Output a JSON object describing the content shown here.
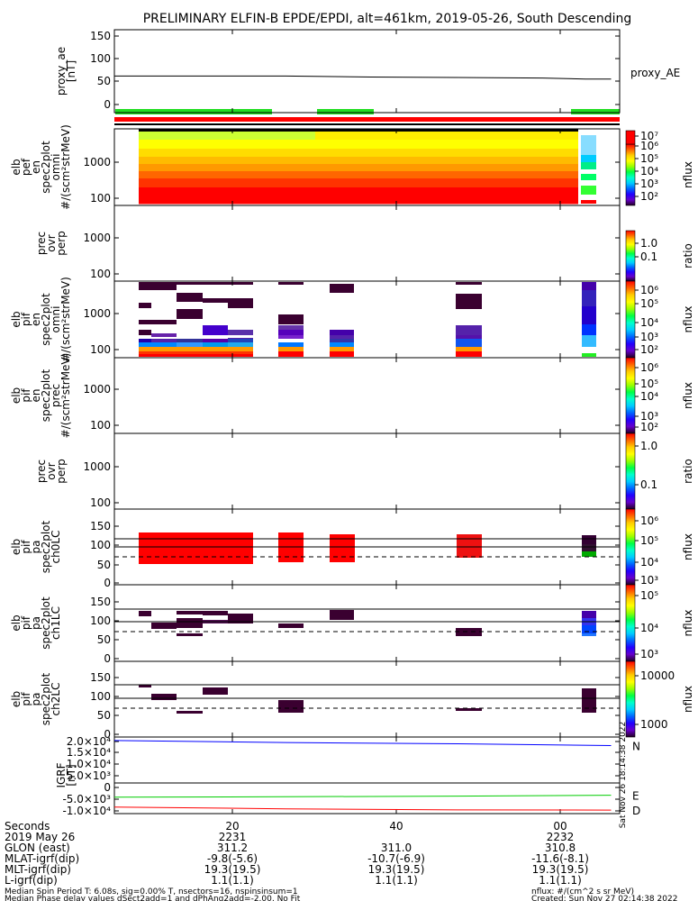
{
  "chart_data": {
    "type": "heatmap",
    "title": "PRELIMINARY ELFIN-B EPDE/EPDI, alt=461km, 2019-05-26, South Descending",
    "x_tick_labels": [
      "20",
      "40",
      "00"
    ],
    "panels": [
      {
        "id": "proxy_ae",
        "ylabel": [
          "proxy_ae",
          "[nT]"
        ],
        "right_label": "proxy_AE",
        "yticks": [
          "0",
          "50",
          "100",
          "150"
        ],
        "ylim": [
          -10,
          160
        ],
        "line": [
          [
            0,
            65
          ],
          [
            10,
            65
          ],
          [
            20,
            65
          ],
          [
            30,
            63
          ],
          [
            40,
            62
          ],
          [
            50,
            61
          ],
          [
            55,
            59
          ],
          [
            58,
            59
          ]
        ]
      },
      {
        "id": "elb_pef_en",
        "ylabel": [
          "elb",
          "pef",
          "en",
          "spec2plot",
          "omni",
          "#/(scm²strMeV)"
        ],
        "yticks": [
          "100",
          "1000"
        ],
        "ylim_log": [
          55,
          8000
        ],
        "colorbar": {
          "label": "nflux",
          "ticks": [
            "10⁷",
            "10⁶",
            "10⁵",
            "10⁴",
            "10³",
            "10²"
          ]
        }
      },
      {
        "id": "prec_ovr_perp_e",
        "ylabel": [
          "prec",
          "ovr",
          "perp"
        ],
        "yticks": [
          "100",
          "1000"
        ],
        "ylim_log": [
          55,
          8000
        ],
        "colorbar": {
          "label": "ratio",
          "ticks": [
            "1.0",
            "0.1"
          ]
        }
      },
      {
        "id": "elb_pif_en",
        "ylabel": [
          "elb",
          "pif",
          "en",
          "spec2plot",
          "omni",
          "#/(scm²strMeV)"
        ],
        "yticks": [
          "100",
          "1000"
        ],
        "ylim_log": [
          55,
          8000
        ],
        "colorbar": {
          "label": "nflux",
          "ticks": [
            "10⁶",
            "10⁵",
            "10⁴",
            "10³",
            "10²"
          ]
        }
      },
      {
        "id": "elb_pif_en_prec",
        "ylabel": [
          "elb",
          "pif",
          "en",
          "spec2plot",
          "prec",
          "#/(scm²strMeV)"
        ],
        "yticks": [
          "100",
          "1000"
        ],
        "ylim_log": [
          55,
          8000
        ],
        "colorbar": {
          "label": "nflux",
          "ticks": [
            "10⁶",
            "10⁵",
            "10⁴",
            "10³",
            "10²"
          ]
        }
      },
      {
        "id": "prec_ovr_perp_i",
        "ylabel": [
          "prec",
          "ovr",
          "perp"
        ],
        "yticks": [
          "100",
          "1000"
        ],
        "ylim_log": [
          55,
          8000
        ],
        "colorbar": {
          "label": "ratio",
          "ticks": [
            "1.0",
            "0.1"
          ]
        }
      },
      {
        "id": "elb_pif_pa_ch0",
        "ylabel": [
          "elb",
          "pif",
          "pa",
          "spec2plot",
          "ch0LC"
        ],
        "yticks": [
          "0",
          "50",
          "100",
          "150"
        ],
        "ylim": [
          -10,
          190
        ],
        "colorbar": {
          "label": "nflux",
          "ticks": [
            "10⁶",
            "10⁵",
            "10⁴",
            "10³"
          ]
        }
      },
      {
        "id": "elb_pif_pa_ch1",
        "ylabel": [
          "elb",
          "pif",
          "pa",
          "spec2plot",
          "ch1LC"
        ],
        "yticks": [
          "0",
          "50",
          "100",
          "150"
        ],
        "ylim": [
          -10,
          190
        ],
        "colorbar": {
          "label": "nflux",
          "ticks": [
            "10⁵",
            "10⁴",
            "10³"
          ]
        }
      },
      {
        "id": "elb_pif_pa_ch2",
        "ylabel": [
          "elb",
          "pif",
          "pa",
          "spec2plot",
          "ch2LC"
        ],
        "yticks": [
          "0",
          "50",
          "100",
          "150"
        ],
        "ylim": [
          -10,
          190
        ],
        "colorbar": {
          "label": "nflux",
          "ticks": [
            "10000",
            "1000"
          ]
        }
      },
      {
        "id": "igrf",
        "ylabel": [
          "IGRF",
          "[nT]"
        ],
        "yticks": [
          "-1.0×10⁴",
          "-5.0×10³",
          "0",
          "5.0×10³",
          "1.0×10⁴",
          "1.5×10⁴",
          "2.0×10⁴"
        ],
        "ylim": [
          -14000,
          21000
        ],
        "series": [
          {
            "name": "N",
            "color": "#0000ff",
            "values": [
              [
                0,
                19400
              ],
              [
                20,
                18500
              ],
              [
                40,
                17900
              ],
              [
                58,
                17100
              ]
            ]
          },
          {
            "name": "E",
            "color": "#00cc00",
            "values": [
              [
                0,
                -6500
              ],
              [
                20,
                -6300
              ],
              [
                40,
                -6000
              ],
              [
                58,
                -5600
              ]
            ]
          },
          {
            "name": "D",
            "color": "#ff0000",
            "values": [
              [
                0,
                -11000
              ],
              [
                20,
                -11800
              ],
              [
                40,
                -12300
              ],
              [
                58,
                -12400
              ]
            ]
          }
        ]
      }
    ],
    "footer_rows": [
      {
        "label": "Seconds",
        "values": [
          "20",
          "40",
          "00"
        ]
      },
      {
        "label": "2019 May 26",
        "values": [
          "2231",
          "",
          "2232"
        ]
      },
      {
        "label": "GLON (east)",
        "values": [
          "311.2",
          "311.0",
          "310.8"
        ]
      },
      {
        "label": "MLAT-igrf(dip)",
        "values": [
          "-9.8(-5.6)",
          "-10.7(-6.9)",
          "-11.6(-8.1)"
        ]
      },
      {
        "label": "MLT-igrf(dip)",
        "values": [
          "19.3(19.5)",
          "19.3(19.5)",
          "19.3(19.5)"
        ]
      },
      {
        "label": "L-igrf(dip)",
        "values": [
          "1.1(1.1)",
          "1.1(1.1)",
          "1.1(1.1)"
        ]
      }
    ],
    "footnote_left_1": "Median Spin Period T: 6.08s, sig=0.00% T, nsectors=16, nspinsinsum=1",
    "footnote_left_2": "Median Phase delay values dSect2add=1 and dPhAng2add=-2.00, No Fit",
    "footnote_right_1": "nflux: #/(cm^2 s sr MeV)",
    "footnote_right_2": "Created: Sun Nov 27 02:14:38 2022",
    "side_stamp": "Sat Nov 26 18:14:38 2022"
  },
  "colors": {
    "red": "#ff0000",
    "green": "#22dd22",
    "purple": "#3a0030"
  }
}
